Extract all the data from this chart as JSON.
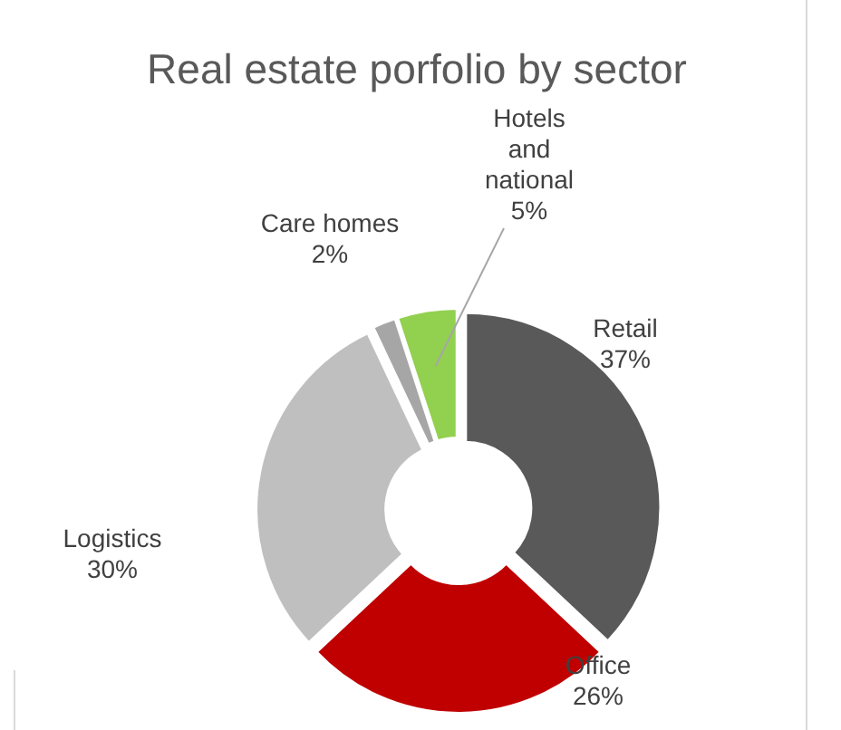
{
  "chart_data": {
    "type": "donut",
    "title": "Real estate porfolio by sector",
    "categories": [
      "Retail",
      "Office",
      "Logistics",
      "Care homes",
      "Hotels and national"
    ],
    "values": [
      37,
      26,
      30,
      2,
      5
    ],
    "value_labels": [
      "37%",
      "26%",
      "30%",
      "2%",
      "5%"
    ],
    "colors": [
      "#595959",
      "#c00000",
      "#bfbfbf",
      "#a6a6a6",
      "#92d050"
    ]
  }
}
